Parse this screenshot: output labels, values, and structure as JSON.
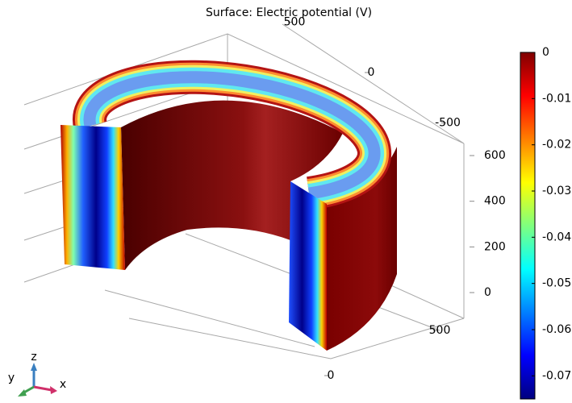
{
  "chart_data": {
    "type": "surface3d",
    "title": "Surface: Electric potential (V)",
    "colormap": [
      "#00007f",
      "#0000ff",
      "#007fff",
      "#00ffff",
      "#7fff7f",
      "#ffff00",
      "#ff7f00",
      "#ff0000",
      "#7f0000"
    ],
    "clim": [
      -0.075,
      0
    ],
    "cticks": [
      0,
      -0.01,
      -0.02,
      -0.03,
      -0.04,
      -0.05,
      -0.06,
      -0.07
    ],
    "xticks": [
      0,
      500
    ],
    "yticks": [
      -500,
      0,
      500
    ],
    "zticks": [
      0,
      200,
      400,
      600
    ],
    "axis_labels": {
      "x": "x",
      "y": "y",
      "z": "z"
    }
  }
}
